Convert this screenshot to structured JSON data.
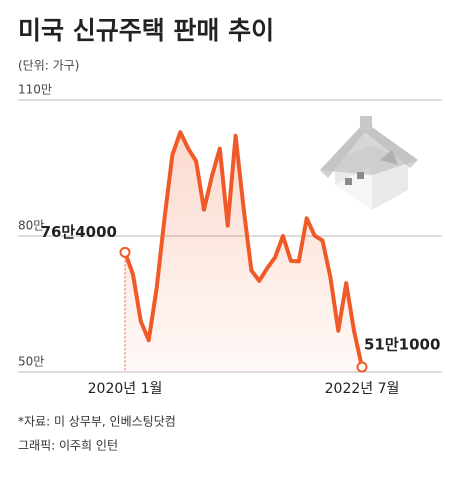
{
  "chart_data": {
    "type": "line",
    "title": "미국 신규주택 판매 추이",
    "subtitle": "(단위: 가구)",
    "categories": [
      "2020년 1월",
      null,
      null,
      null,
      null,
      null,
      null,
      null,
      null,
      null,
      null,
      null,
      null,
      null,
      null,
      null,
      null,
      null,
      null,
      null,
      null,
      null,
      null,
      null,
      null,
      null,
      null,
      null,
      null,
      null,
      "2022년 7월"
    ],
    "values": [
      76.4,
      71.6,
      61.2,
      57,
      68.4,
      83.9,
      97.9,
      102.9,
      99.3,
      96.5,
      85.8,
      93.2,
      99.3,
      82.3,
      102.1,
      86.3,
      72.4,
      70.1,
      72.9,
      75.3,
      80,
      74.5,
      74.4,
      83.9,
      80.1,
      79,
      70.9,
      59.1,
      69.6,
      59,
      51.1
    ],
    "value_labels": {
      "0": "76만4000",
      "30": "51만1000"
    },
    "color": "#f05a28",
    "ylim": [
      50,
      110
    ],
    "yticks": [
      {
        "value": 50,
        "label": "50만"
      },
      {
        "value": 80,
        "label": "80만"
      },
      {
        "value": 110,
        "label": "110만"
      }
    ],
    "grid": true
  },
  "source": "*자료: 미 상무부, 인베스팅닷컴",
  "credit": "그래픽: 이주희 인턴"
}
